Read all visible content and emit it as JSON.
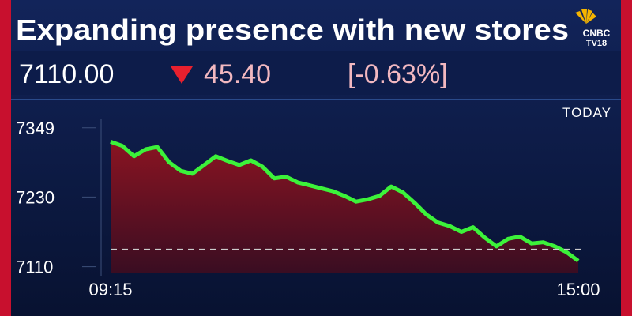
{
  "header": {
    "title": "Expanding presence with new stores",
    "logo": "CNBC",
    "logo_sub": "TV18"
  },
  "quote": {
    "price": "7110.00",
    "change": "45.40",
    "percent": "[-0.63%]"
  },
  "chart_data": {
    "type": "area",
    "period": "TODAY",
    "categories": [
      "09:15",
      null,
      null,
      null,
      null,
      null,
      null,
      null,
      null,
      null,
      null,
      null,
      null,
      null,
      null,
      null,
      null,
      null,
      null,
      null,
      null,
      null,
      null,
      null,
      null,
      null,
      null,
      null,
      null,
      null,
      null,
      null,
      null,
      null,
      null,
      null,
      null,
      null,
      null,
      null,
      "15:00"
    ],
    "series": [
      {
        "color": "#3cf23a",
        "values": [
          7325,
          7318,
          7300,
          7312,
          7316,
          7290,
          7275,
          7270,
          7285,
          7300,
          7292,
          7285,
          7293,
          7282,
          7262,
          7265,
          7255,
          7250,
          7245,
          7240,
          7232,
          7222,
          7226,
          7232,
          7248,
          7238,
          7220,
          7200,
          7186,
          7180,
          7170,
          7178,
          7160,
          7145,
          7158,
          7162,
          7150,
          7152,
          7145,
          7135,
          7120
        ]
      }
    ],
    "reference_line": 7140,
    "ylim": [
      7100,
      7365
    ],
    "yticks": [
      7110,
      7230,
      7349
    ]
  }
}
